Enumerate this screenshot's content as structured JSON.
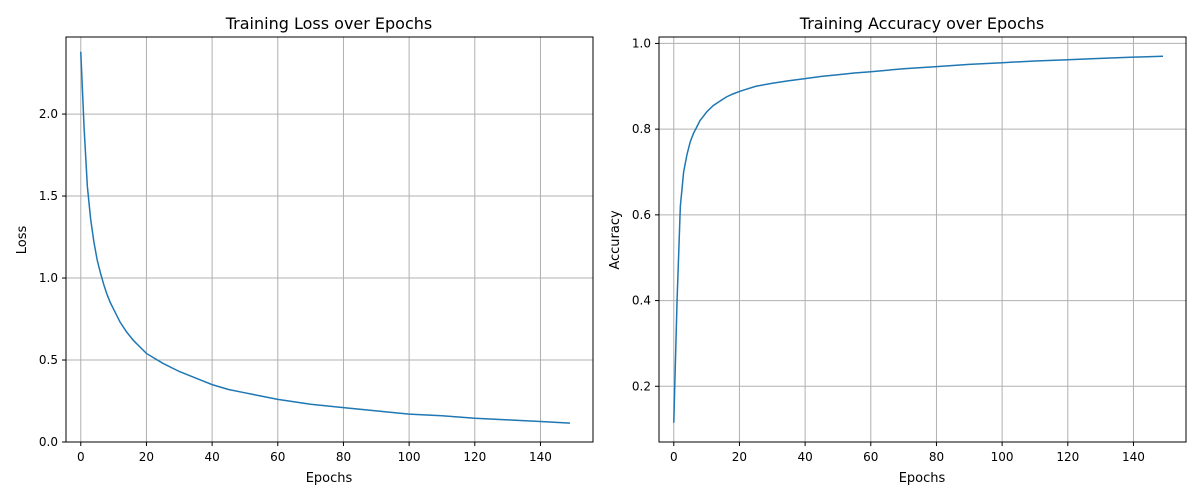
{
  "chart_data": [
    {
      "type": "line",
      "title": "Training Loss over Epochs",
      "xlabel": "Epochs",
      "ylabel": "Loss",
      "xlim": [
        -4.5,
        156
      ],
      "ylim": [
        0,
        2.47
      ],
      "xticks": [
        0,
        20,
        40,
        60,
        80,
        100,
        120,
        140
      ],
      "yticks": [
        0.0,
        0.5,
        1.0,
        1.5,
        2.0
      ],
      "ytick_labels": [
        "0.0",
        "0.5",
        "1.0",
        "1.5",
        "2.0"
      ],
      "grid": true,
      "line_color": "#1f77b4",
      "series": [
        {
          "x": [
            0,
            1,
            2,
            3,
            4,
            5,
            6,
            7,
            8,
            9,
            10,
            12,
            14,
            16,
            18,
            20,
            25,
            30,
            35,
            40,
            45,
            50,
            55,
            60,
            70,
            80,
            90,
            100,
            110,
            120,
            130,
            140,
            149
          ],
          "values": [
            2.38,
            1.92,
            1.56,
            1.36,
            1.22,
            1.11,
            1.03,
            0.96,
            0.9,
            0.85,
            0.81,
            0.73,
            0.67,
            0.62,
            0.58,
            0.54,
            0.48,
            0.43,
            0.39,
            0.35,
            0.32,
            0.3,
            0.28,
            0.26,
            0.23,
            0.21,
            0.19,
            0.17,
            0.16,
            0.145,
            0.135,
            0.125,
            0.115
          ]
        }
      ]
    },
    {
      "type": "line",
      "title": "Training Accuracy over Epochs",
      "xlabel": "Epochs",
      "ylabel": "Accuracy",
      "xlim": [
        -4.5,
        156
      ],
      "ylim": [
        0.07,
        1.015
      ],
      "xticks": [
        0,
        20,
        40,
        60,
        80,
        100,
        120,
        140
      ],
      "yticks": [
        0.2,
        0.4,
        0.6,
        0.8,
        1.0
      ],
      "ytick_labels": [
        "0.2",
        "0.4",
        "0.6",
        "0.8",
        "1.0"
      ],
      "grid": true,
      "line_color": "#1f77b4",
      "series": [
        {
          "x": [
            0,
            1,
            2,
            3,
            4,
            5,
            6,
            7,
            8,
            9,
            10,
            12,
            14,
            16,
            18,
            20,
            25,
            30,
            35,
            40,
            45,
            50,
            55,
            60,
            70,
            80,
            90,
            100,
            110,
            120,
            130,
            140,
            149
          ],
          "values": [
            0.115,
            0.4,
            0.62,
            0.7,
            0.74,
            0.77,
            0.79,
            0.805,
            0.82,
            0.83,
            0.84,
            0.855,
            0.865,
            0.875,
            0.882,
            0.888,
            0.9,
            0.907,
            0.913,
            0.918,
            0.923,
            0.927,
            0.931,
            0.934,
            0.941,
            0.946,
            0.951,
            0.955,
            0.959,
            0.962,
            0.965,
            0.968,
            0.97
          ]
        }
      ]
    }
  ]
}
